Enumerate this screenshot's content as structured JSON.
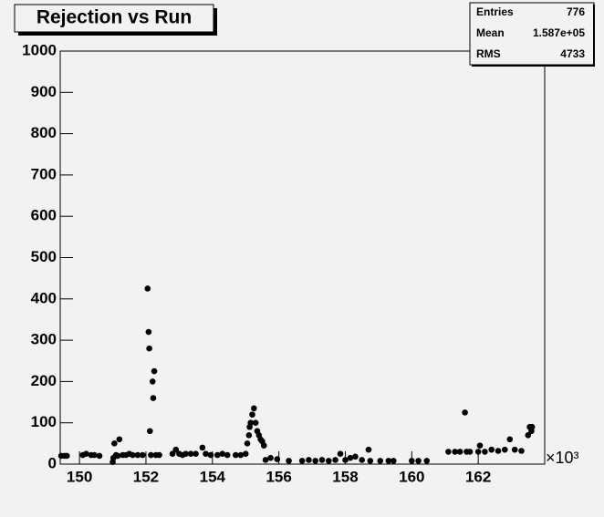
{
  "chart_data": {
    "type": "scatter",
    "title": "Rejection vs Run",
    "x_multiplier": "×10³",
    "stats": {
      "rows": [
        [
          "Entries",
          776
        ],
        [
          "Mean",
          "1.587e+05"
        ],
        [
          "RMS",
          4733
        ]
      ]
    },
    "color": "#000000",
    "xlim": [
      149.42,
      164.0
    ],
    "xticks": [
      150,
      152,
      154,
      156,
      158,
      160,
      162
    ],
    "ylim": [
      0,
      1000
    ],
    "yticks": [
      0,
      100,
      200,
      300,
      400,
      500,
      600,
      700,
      800,
      900,
      1000
    ],
    "x": [
      149.45,
      149.55,
      149.62,
      150.1,
      150.2,
      150.35,
      150.45,
      150.6,
      151.0,
      151.02,
      151.05,
      151.1,
      151.2,
      151.15,
      151.3,
      151.4,
      151.5,
      151.6,
      151.75,
      151.9,
      152.05,
      152.08,
      152.1,
      152.12,
      152.15,
      152.2,
      152.22,
      152.25,
      152.3,
      152.4,
      152.8,
      152.9,
      153.0,
      153.1,
      153.2,
      153.35,
      153.5,
      153.7,
      153.8,
      153.95,
      154.15,
      154.3,
      154.45,
      154.7,
      154.85,
      155.0,
      155.05,
      155.1,
      155.12,
      155.15,
      155.2,
      155.25,
      155.3,
      155.35,
      155.4,
      155.45,
      155.5,
      155.55,
      155.6,
      155.75,
      155.95,
      156.3,
      156.7,
      156.9,
      157.1,
      157.3,
      157.5,
      157.7,
      157.85,
      158.0,
      158.15,
      158.3,
      158.5,
      158.7,
      158.75,
      159.05,
      159.3,
      159.45,
      160.0,
      160.2,
      160.45,
      161.1,
      161.3,
      161.45,
      161.6,
      161.65,
      161.75,
      162.0,
      162.05,
      162.2,
      162.4,
      162.6,
      162.8,
      162.95,
      163.1,
      163.3,
      163.5,
      163.55,
      163.6,
      163.62
    ],
    "values": [
      20,
      20,
      20,
      22,
      25,
      22,
      22,
      20,
      5,
      15,
      50,
      22,
      60,
      20,
      22,
      22,
      25,
      22,
      22,
      22,
      425,
      320,
      280,
      80,
      22,
      200,
      160,
      225,
      22,
      22,
      25,
      35,
      25,
      22,
      25,
      25,
      25,
      40,
      25,
      22,
      22,
      25,
      22,
      22,
      22,
      25,
      50,
      70,
      90,
      100,
      120,
      135,
      100,
      80,
      70,
      60,
      55,
      45,
      10,
      15,
      12,
      8,
      8,
      10,
      8,
      10,
      8,
      10,
      25,
      10,
      15,
      18,
      10,
      35,
      8,
      8,
      8,
      8,
      8,
      8,
      8,
      30,
      30,
      30,
      125,
      30,
      30,
      30,
      45,
      30,
      35,
      32,
      35,
      60,
      35,
      32,
      70,
      90,
      80,
      90
    ]
  }
}
